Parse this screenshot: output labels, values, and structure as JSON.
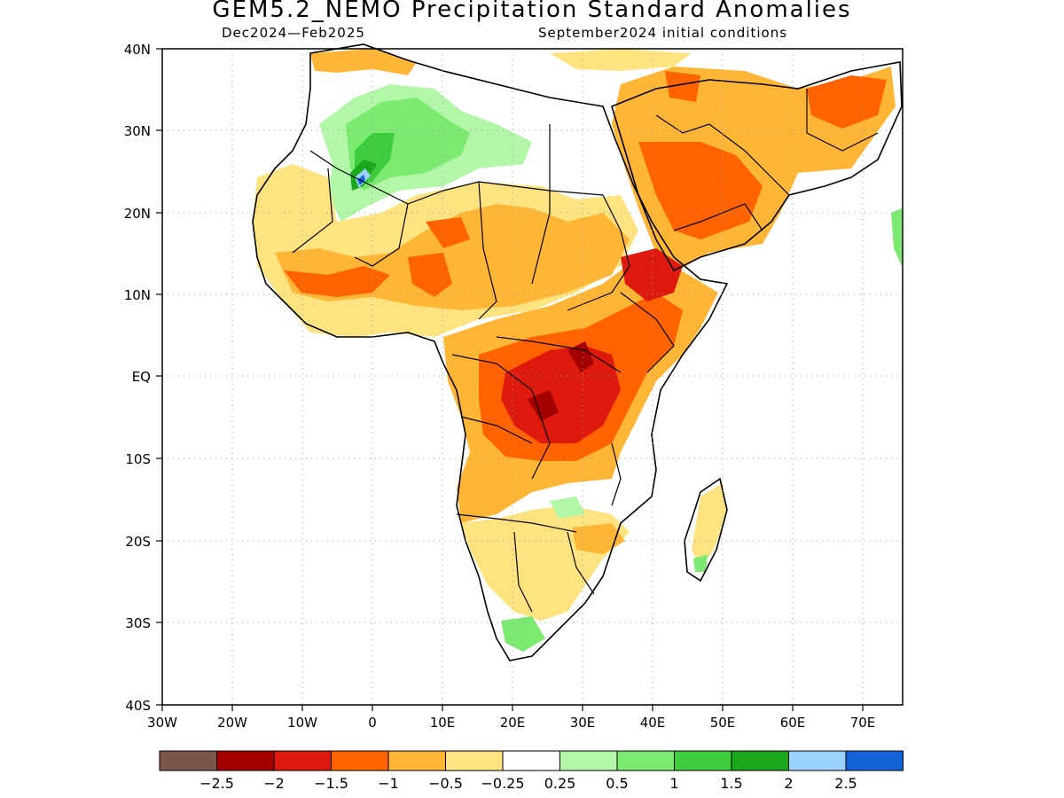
{
  "title": "GEM5.2_NEMO Precipitation Standard Anomalies",
  "subtitle_left": "Dec2024—Feb2025",
  "subtitle_right": "September2024 initial conditions",
  "lat_labels": [
    "40N",
    "30N",
    "20N",
    "10N",
    "EQ",
    "10S",
    "20S",
    "30S",
    "40S"
  ],
  "lon_labels": [
    "30W",
    "20W",
    "10W",
    "0",
    "10E",
    "20E",
    "30E",
    "40E",
    "50E",
    "60E",
    "70E"
  ],
  "colorbar": {
    "colors": [
      "#7a5548",
      "#a50000",
      "#dd1a0d",
      "#ff6200",
      "#ffb637",
      "#ffe380",
      "#ffffff",
      "#b2f7a8",
      "#7cea70",
      "#3ccc3c",
      "#1aa81a",
      "#99d2fb",
      "#1462d8"
    ],
    "labels": [
      "−2.5",
      "−2",
      "−1.5",
      "−1",
      "−0.5",
      "−0.25",
      "0.25",
      "0.5",
      "1",
      "1.5",
      "2",
      "2.5"
    ]
  }
}
